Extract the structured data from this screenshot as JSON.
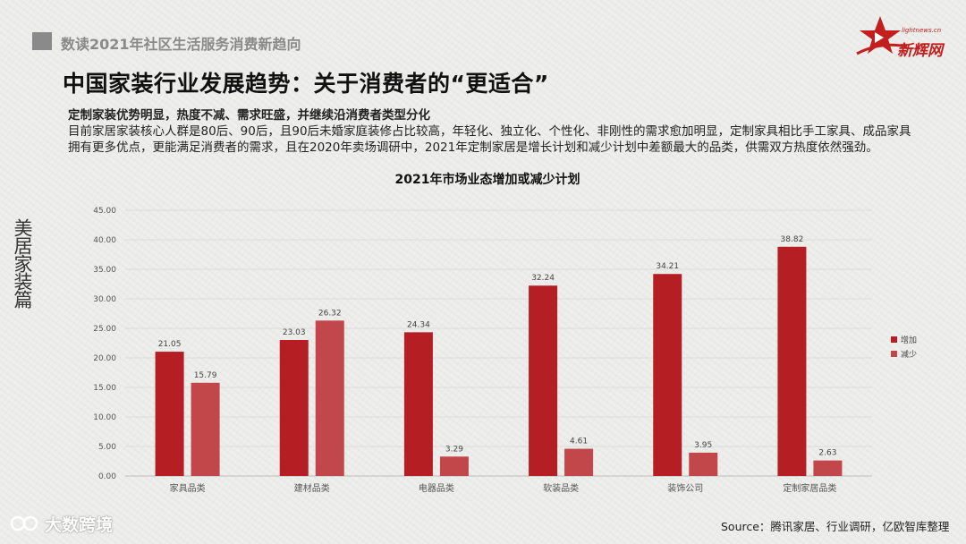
{
  "header": {
    "section_title": "数读2021年社区生活服务消费新趋向"
  },
  "logo": {
    "url_text": "lightnews.cn",
    "brand": "新辉网"
  },
  "main_title": "中国家装行业发展趋势：关于消费者的“更适合”",
  "description": {
    "lead": "定制家装优势明显，热度不减、需求旺盛，并继续沿消费者类型分化",
    "body": "目前家居家装核心人群是80后、90后，且90后未婚家庭装修占比较高，年轻化、独立化、个性化、非刚性的需求愈加明显，定制家具相比手工家具、成品家具拥有更多优点，更能满足消费者的需求，且在2020年卖场调研中，2021年定制家居是增长计划和减少计划中差额最大的品类，供需双方热度依然强劲。"
  },
  "side_label": "美居家装篇",
  "source": "Source：腾讯家居、行业调研，亿欧智库整理",
  "watermark": "大数跨境",
  "colors": {
    "increase": "#b51f24",
    "decrease": "#c2474b",
    "axis_text": "#555555"
  },
  "chart_data": {
    "type": "bar",
    "title": "2021年市场业态增加或减少计划",
    "categories": [
      "家具品类",
      "建材品类",
      "电器品类",
      "软装品类",
      "装饰公司",
      "定制家居品类"
    ],
    "series": [
      {
        "name": "增加",
        "values": [
          21.05,
          23.03,
          24.34,
          32.24,
          34.21,
          38.82
        ]
      },
      {
        "name": "减少",
        "values": [
          15.79,
          26.32,
          3.29,
          4.61,
          3.95,
          2.63
        ]
      }
    ],
    "ylim": [
      0,
      45
    ],
    "yticks": [
      "0.00",
      "5.00",
      "10.00",
      "15.00",
      "20.00",
      "25.00",
      "30.00",
      "35.00",
      "40.00",
      "45.00"
    ],
    "grid": true,
    "legend": "right"
  }
}
